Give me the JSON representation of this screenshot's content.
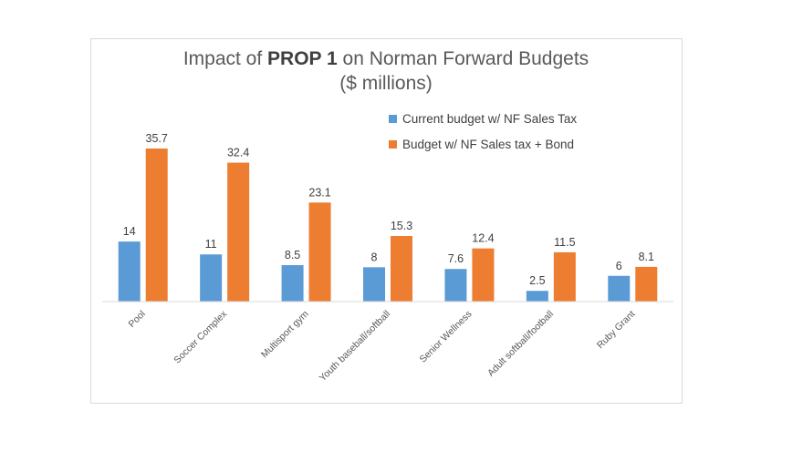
{
  "chart_data": {
    "type": "bar",
    "title_prefix": "Impact of ",
    "title_bold": "PROP 1",
    "title_suffix": " on Norman Forward Budgets",
    "subtitle": "($ millions)",
    "categories": [
      "Pool",
      "Soccer Complex",
      "Multisport gym",
      "Youth baseball/softball",
      "Senior Wellness",
      "Adult softball/football",
      "Ruby Grant"
    ],
    "series": [
      {
        "name": "Current budget w/ NF Sales Tax",
        "color": "#5b9bd5",
        "values": [
          14,
          11,
          8.5,
          8,
          7.6,
          2.5,
          6
        ]
      },
      {
        "name": "Budget w/ NF Sales tax + Bond",
        "color": "#ed7d31",
        "values": [
          35.7,
          32.4,
          23.1,
          15.3,
          12.4,
          11.5,
          8.1
        ]
      }
    ],
    "ylim": [
      0,
      40
    ],
    "grid": false,
    "legend": "top-right",
    "data_labels": true
  }
}
